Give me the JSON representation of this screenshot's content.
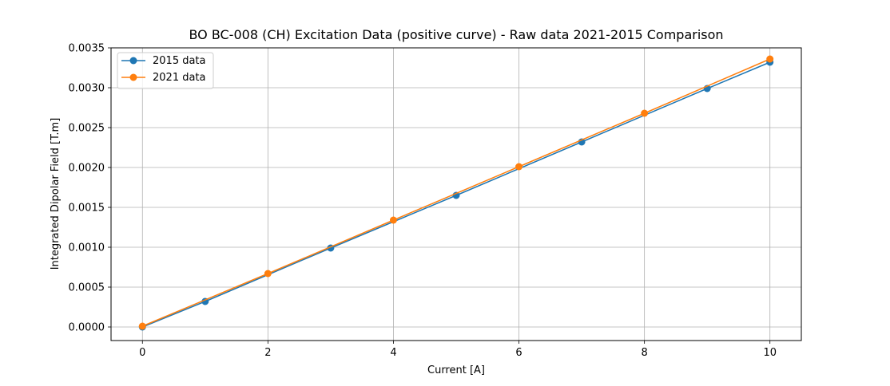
{
  "chart_data": {
    "type": "line",
    "title": "BO BC-008 (CH) Excitation Data (positive curve) - Raw data 2021-2015 Comparison",
    "xlabel": "Current [A]",
    "ylabel": "Integrated Dipolar Field [T.m]",
    "xlim": [
      -0.5,
      10.5
    ],
    "ylim": [
      -0.00017,
      0.0035
    ],
    "xticks": [
      "0",
      "2",
      "4",
      "6",
      "8",
      "10"
    ],
    "xtick_values": [
      0,
      2,
      4,
      6,
      8,
      10
    ],
    "yticks": [
      "0.0000",
      "0.0005",
      "0.0010",
      "0.0015",
      "0.0020",
      "0.0025",
      "0.0030",
      "0.0035"
    ],
    "ytick_values": [
      0,
      0.0005,
      0.001,
      0.0015,
      0.002,
      0.0025,
      0.003,
      0.0035
    ],
    "grid": true,
    "legend_position": "top-left",
    "series": [
      {
        "name": "2015 data",
        "color": "#1f77b4",
        "marker": "circle",
        "x": [
          0,
          1,
          3,
          5,
          7,
          9,
          10
        ],
        "y": [
          0.0,
          0.00032,
          0.00099,
          0.00165,
          0.00232,
          0.00299,
          0.00332
        ]
      },
      {
        "name": "2021 data",
        "color": "#ff7f0e",
        "marker": "circle",
        "x": [
          0,
          2,
          4,
          6,
          8,
          10
        ],
        "y": [
          1e-05,
          0.00067,
          0.00134,
          0.00201,
          0.00268,
          0.00336
        ]
      }
    ]
  }
}
